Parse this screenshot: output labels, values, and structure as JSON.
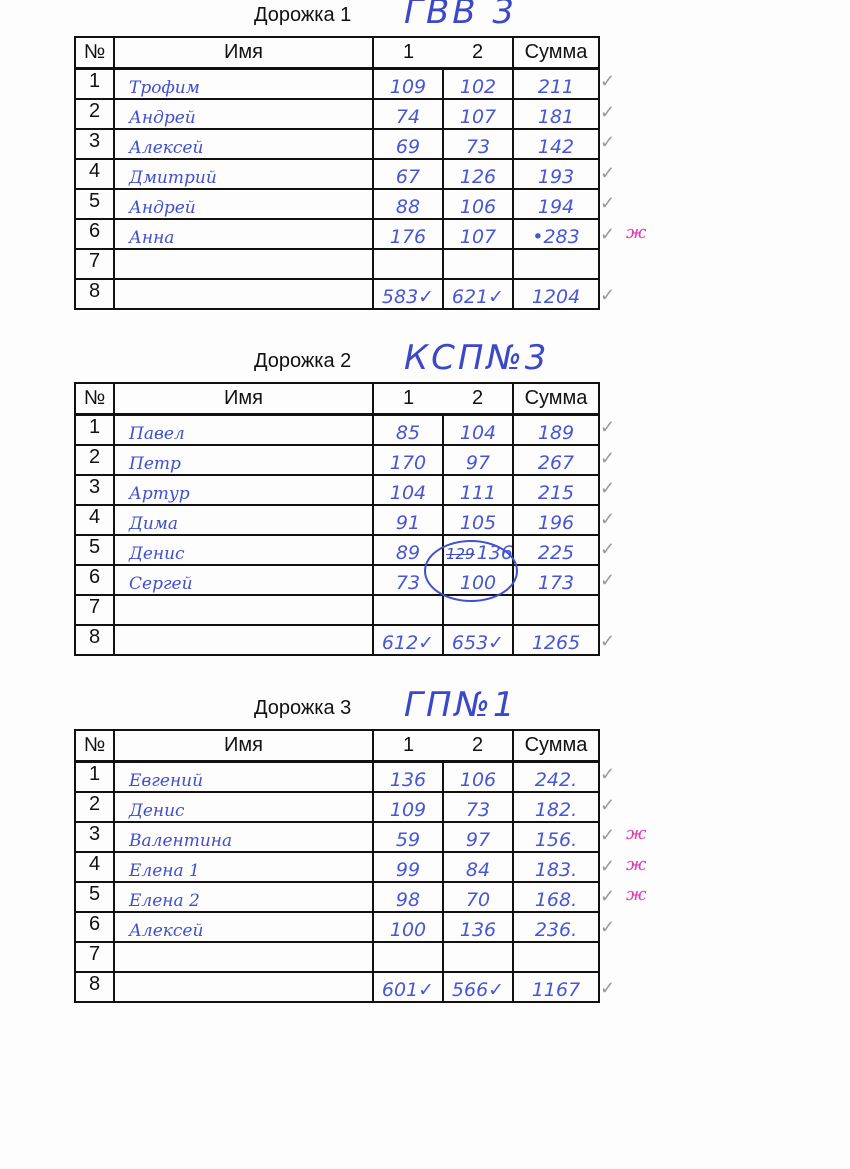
{
  "headers": {
    "num": "№",
    "name": "Имя",
    "c1": "1",
    "c2": "2",
    "sum": "Сумма"
  },
  "colors": {
    "ink": "#3f4fd0",
    "print": "#111111",
    "pink_marker": "#e040b0",
    "pencil": "#999999"
  },
  "lanes": [
    {
      "title": "Дорожка 1",
      "team": "ГВВ 3",
      "rows": [
        {
          "n": "1",
          "name": "Трофим",
          "r1": "109",
          "r2": "102",
          "sum": "211",
          "check": "✓",
          "note": ""
        },
        {
          "n": "2",
          "name": "Андрей",
          "r1": "74",
          "r2": "107",
          "sum": "181",
          "check": "✓",
          "note": ""
        },
        {
          "n": "3",
          "name": "Алексей",
          "r1": "69",
          "r2": "73",
          "sum": "142",
          "check": "✓",
          "note": ""
        },
        {
          "n": "4",
          "name": "Дмитрий",
          "r1": "67",
          "r2": "126",
          "sum": "193",
          "check": "✓",
          "note": ""
        },
        {
          "n": "5",
          "name": "Андрей",
          "r1": "88",
          "r2": "106",
          "sum": "194",
          "check": "✓",
          "note": ""
        },
        {
          "n": "6",
          "name": "Анна",
          "r1": "176",
          "r2": "107",
          "sum": "•283",
          "check": "✓",
          "note": "ж"
        },
        {
          "n": "7",
          "name": "",
          "r1": "",
          "r2": "",
          "sum": "",
          "check": "",
          "note": ""
        },
        {
          "n": "8",
          "name": "",
          "r1": "583✓",
          "r2": "621✓",
          "sum": "1204",
          "check": "✓",
          "note": ""
        }
      ]
    },
    {
      "title": "Дорожка 2",
      "team": "КСП№3",
      "rows": [
        {
          "n": "1",
          "name": "Павел",
          "r1": "85",
          "r2": "104",
          "sum": "189",
          "check": "✓",
          "note": ""
        },
        {
          "n": "2",
          "name": "Петр",
          "r1": "170",
          "r2": "97",
          "sum": "267",
          "check": "✓",
          "note": ""
        },
        {
          "n": "3",
          "name": "Артур",
          "r1": "104",
          "r2": "111",
          "sum": "215",
          "check": "✓",
          "note": ""
        },
        {
          "n": "4",
          "name": "Дима",
          "r1": "91",
          "r2": "105",
          "sum": "196",
          "check": "✓",
          "note": ""
        },
        {
          "n": "5",
          "name": "Денис",
          "r1": "89",
          "r2": "136",
          "r2_crossed": "129",
          "sum": "225",
          "check": "✓",
          "note": ""
        },
        {
          "n": "6",
          "name": "Сергей",
          "r1": "73",
          "r2": "100",
          "sum": "173",
          "check": "✓",
          "note": ""
        },
        {
          "n": "7",
          "name": "",
          "r1": "",
          "r2": "",
          "sum": "",
          "check": "",
          "note": ""
        },
        {
          "n": "8",
          "name": "",
          "r1": "612✓",
          "r2": "653✓",
          "sum": "1265",
          "check": "✓",
          "note": ""
        }
      ]
    },
    {
      "title": "Дорожка 3",
      "team": "ГП№1",
      "rows": [
        {
          "n": "1",
          "name": "Евгений",
          "r1": "136",
          "r2": "106",
          "sum": "242.",
          "check": "✓",
          "note": ""
        },
        {
          "n": "2",
          "name": "Денис",
          "r1": "109",
          "r2": "73",
          "sum": "182.",
          "check": "✓",
          "note": ""
        },
        {
          "n": "3",
          "name": "Валентина",
          "r1": "59",
          "r2": "97",
          "sum": "156.",
          "check": "✓",
          "note": "ж"
        },
        {
          "n": "4",
          "name": "Елена 1",
          "r1": "99",
          "r2": "84",
          "sum": "183.",
          "check": "✓",
          "note": "ж"
        },
        {
          "n": "5",
          "name": "Елена 2",
          "r1": "98",
          "r2": "70",
          "sum": "168.",
          "check": "✓",
          "note": "ж"
        },
        {
          "n": "6",
          "name": "Алексей",
          "r1": "100",
          "r2": "136",
          "sum": "236.",
          "check": "✓",
          "note": ""
        },
        {
          "n": "7",
          "name": "",
          "r1": "",
          "r2": "",
          "sum": "",
          "check": "",
          "note": ""
        },
        {
          "n": "8",
          "name": "",
          "r1": "601✓",
          "r2": "566✓",
          "sum": "1167",
          "check": "✓",
          "note": ""
        }
      ]
    }
  ]
}
